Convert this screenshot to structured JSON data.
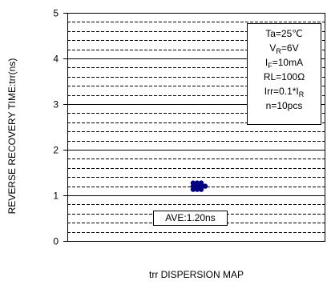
{
  "chart_data": {
    "type": "scatter",
    "title": "",
    "xlabel": "trr DISPERSION MAP",
    "ylabel": "REVERSE RECOVERY TIME:trr(ns)",
    "ylim": [
      0,
      5
    ],
    "yticks": [
      "0",
      "1",
      "2",
      "3",
      "4",
      "5"
    ],
    "grid": true,
    "conditions": [
      {
        "main": "Ta=25℃"
      },
      {
        "main": "V",
        "sub": "R",
        "rest": "=6V"
      },
      {
        "main": "I",
        "sub": "F",
        "rest": "=10mA"
      },
      {
        "main": "RL=100Ω"
      },
      {
        "main": "Irr=0.1*I",
        "sub": "R",
        "rest": ""
      },
      {
        "main": "n=10pcs"
      }
    ],
    "average_label": "AVE:1.20ns",
    "points": [
      {
        "col": 0,
        "y": 1.27
      },
      {
        "col": 1,
        "y": 1.27
      },
      {
        "col": 2,
        "y": 1.27
      },
      {
        "col": 0,
        "y": 1.2
      },
      {
        "col": 1,
        "y": 1.2
      },
      {
        "col": 2,
        "y": 1.2
      },
      {
        "col": 3,
        "y": 1.2
      },
      {
        "col": 0,
        "y": 1.13
      },
      {
        "col": 1,
        "y": 1.13
      },
      {
        "col": 2,
        "y": 1.13
      }
    ],
    "marker_color": "#000080"
  }
}
